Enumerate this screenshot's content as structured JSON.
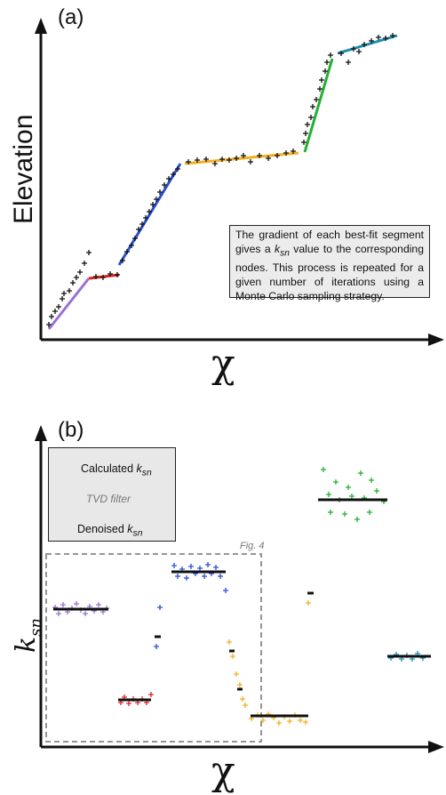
{
  "panel_a": {
    "label": "(a)",
    "y_axis_label": "Elevation",
    "x_axis_label": "χ",
    "note": "The gradient of each best-fit segment gives a k_sn value to the corresponding nodes. This process is repeated for a given number of iterations using a Monte Carlo sampling strategy.",
    "note_parts": {
      "before": "The gradient of each best-fit segment gives a ",
      "k": "k",
      "sub": "sn",
      "after": " value to the corresponding nodes. This process is repeated for a given number of iterations using a Monte Carlo sampling strategy."
    },
    "segment_colors": [
      "#9a6fd6",
      "#e02020",
      "#2a4fd6",
      "#f0b020",
      "#22b030",
      "#1a8fb0"
    ]
  },
  "panel_b": {
    "label": "(b)",
    "y_axis_label_k": "k",
    "y_axis_label_sub": "sn",
    "x_axis_label": "χ",
    "legend": {
      "calculated_k": "Calculated ",
      "calculated_k_sym": "k",
      "calculated_sub": "sn",
      "filter_label": "TVD filter",
      "denoised": "Denoised ",
      "denoised_k_sym": "k",
      "denoised_sub": "sn"
    },
    "inset_label": "Fig. 4"
  }
}
